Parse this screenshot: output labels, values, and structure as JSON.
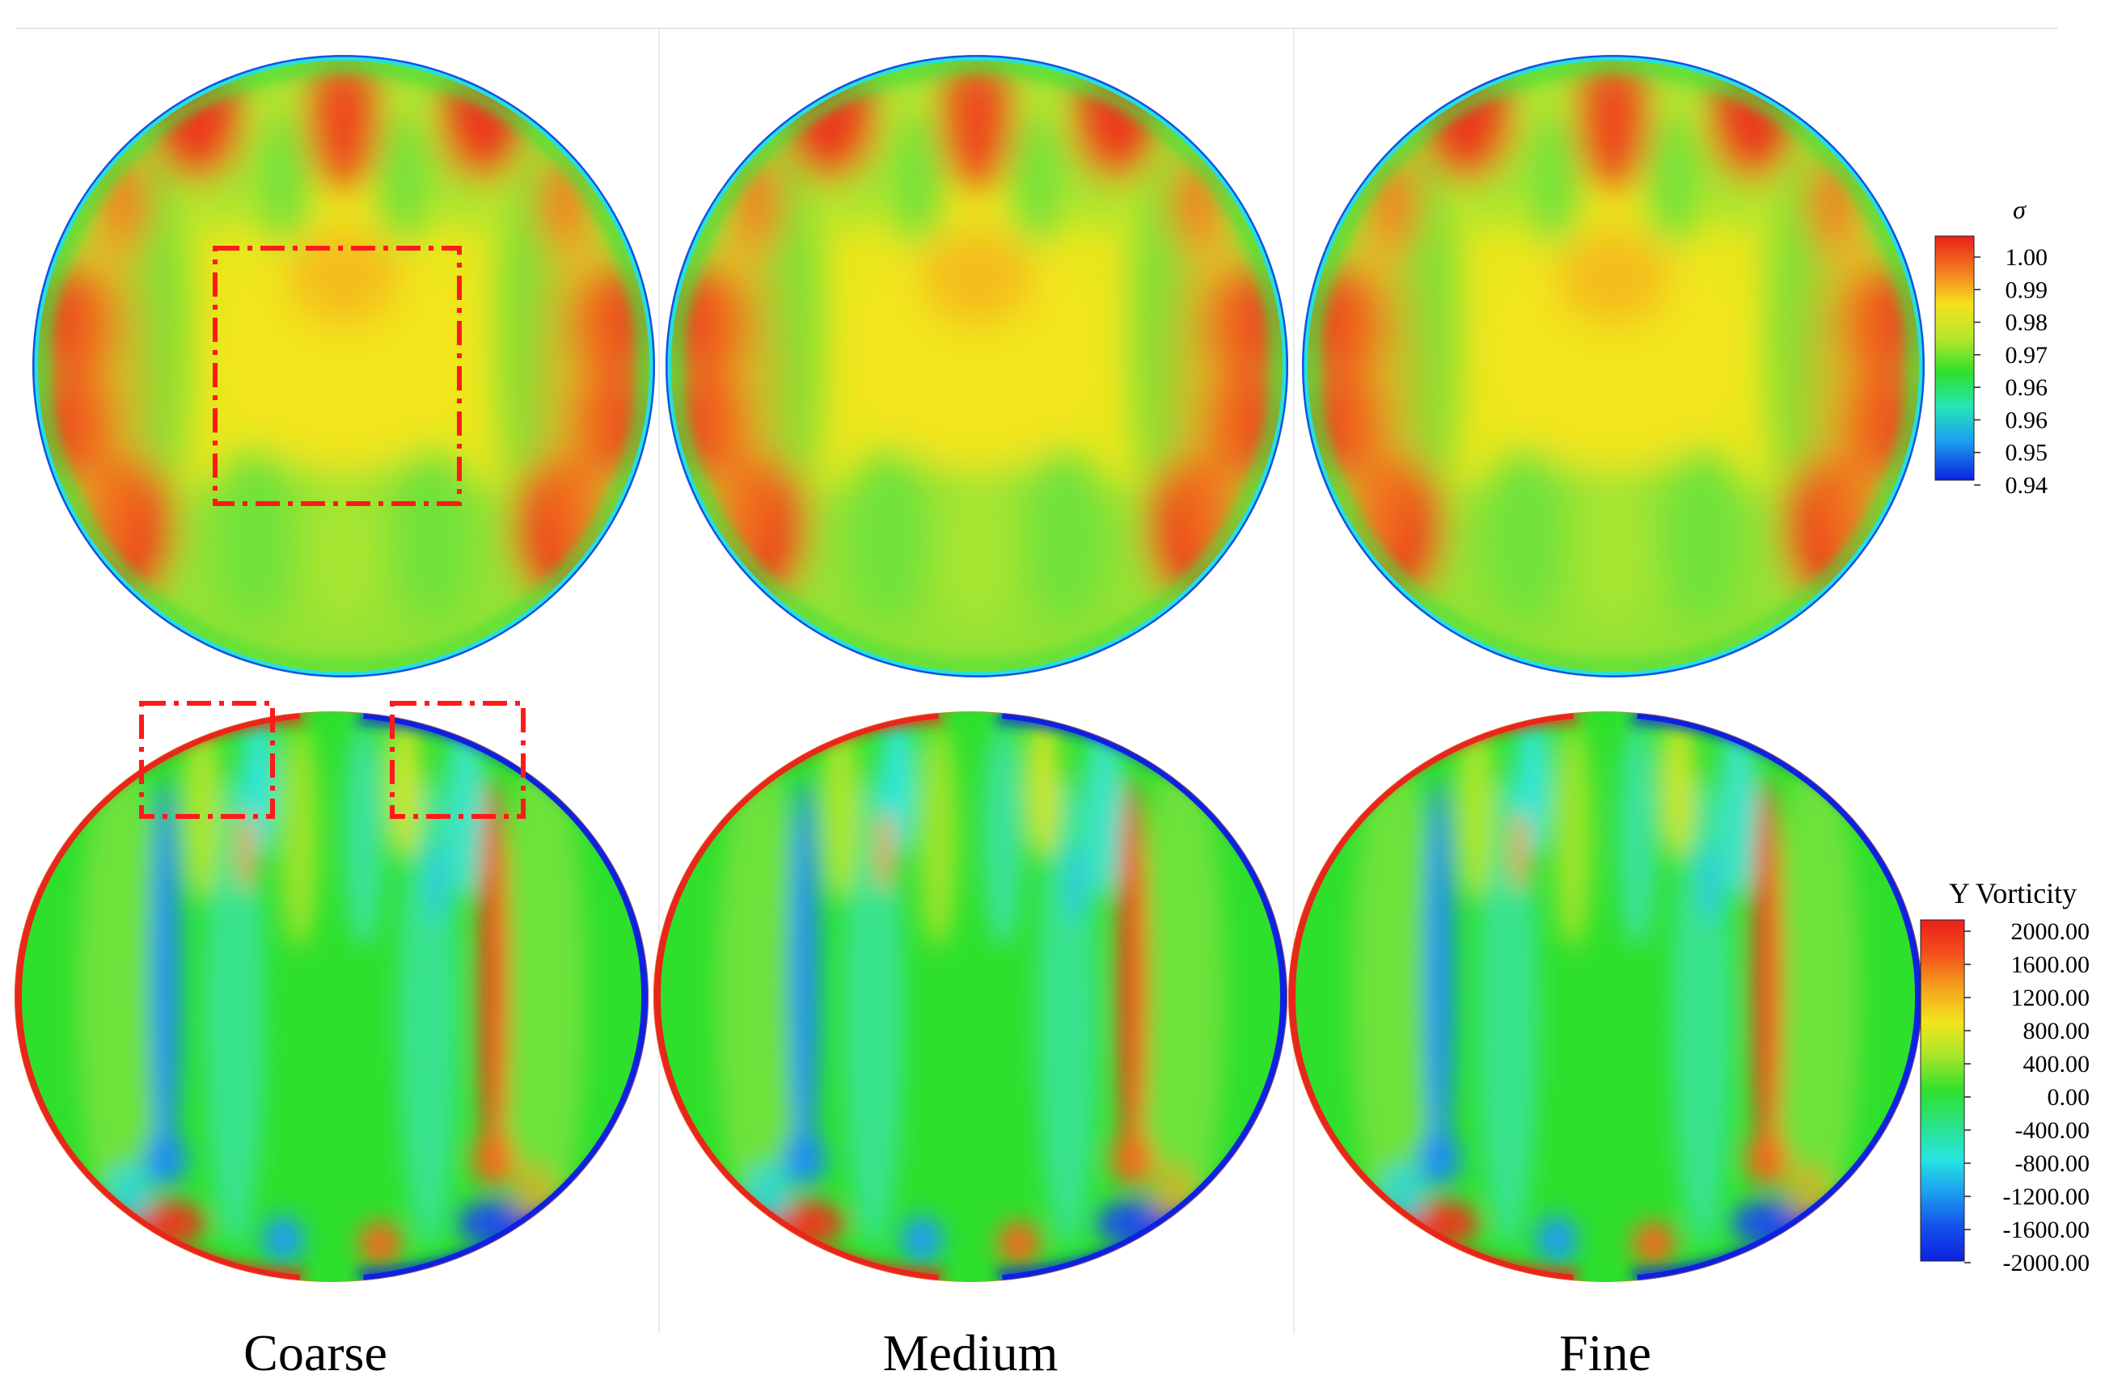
{
  "columns": [
    "Coarse",
    "Medium",
    "Fine"
  ],
  "colorbar_sigma": {
    "title": "σ",
    "ticks": [
      "1.00",
      "0.99",
      "0.98",
      "0.97",
      "0.96",
      "0.96",
      "0.95",
      "0.94"
    ]
  },
  "colorbar_vorticity": {
    "title": "Y Vorticity",
    "ticks": [
      "2000.00",
      "1600.00",
      "1200.00",
      "800.00",
      "400.00",
      "0.00",
      "-400.00",
      "-800.00",
      "-1200.00",
      "-1600.00",
      "-2000.00"
    ]
  },
  "colors": {
    "red": "#e8261a",
    "orange": "#f47a1f",
    "yellow": "#f4e21c",
    "yellow_green": "#c9e82a",
    "green": "#2ee02c",
    "green_light": "#66e53a",
    "cyan": "#27e6e0",
    "light_blue": "#1c9ef0",
    "blue": "#0d22e0",
    "highlight_box": "#ff1a1a"
  }
}
